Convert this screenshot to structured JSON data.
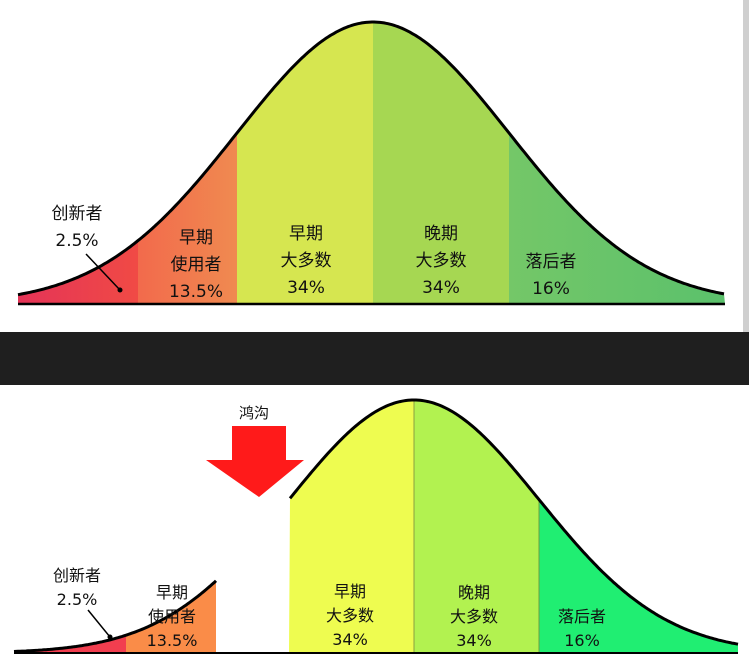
{
  "top": {
    "innovators": {
      "name": "创新者",
      "pct": "2.5%"
    },
    "early_adopters": {
      "line1": "早期",
      "line2": "使用者",
      "pct": "13.5%"
    },
    "early_majority": {
      "line1": "早期",
      "line2": "大多数",
      "pct": "34%"
    },
    "late_majority": {
      "line1": "晚期",
      "line2": "大多数",
      "pct": "34%"
    },
    "laggards": {
      "name": "落后者",
      "pct": "16%"
    }
  },
  "bottom": {
    "chasm_label": "鸿沟",
    "innovators": {
      "name": "创新者",
      "pct": "2.5%"
    },
    "early_adopters": {
      "line1": "早期",
      "line2": "使用者",
      "pct": "13.5%"
    },
    "early_majority": {
      "line1": "早期",
      "line2": "大多数",
      "pct": "34%"
    },
    "late_majority": {
      "line1": "晚期",
      "line2": "大多数",
      "pct": "34%"
    },
    "laggards": {
      "name": "落后者",
      "pct": "16%"
    }
  },
  "colors": {
    "top_innovators": "#e8384f",
    "top_early_adopters": "#f07a4e",
    "top_early_majority": "#d6e34e",
    "top_late_majority": "#a8d850",
    "top_laggards": "#66c46a",
    "bottom_innovators": "#f03c4e",
    "bottom_early_adopters": "#fa8c48",
    "bottom_early_majority": "#eefc4e",
    "bottom_late_majority": "#b0f24e",
    "bottom_laggards": "#22ee70",
    "chasm_arrow": "#ff1a1a",
    "divider": "#1e1e1e"
  }
}
